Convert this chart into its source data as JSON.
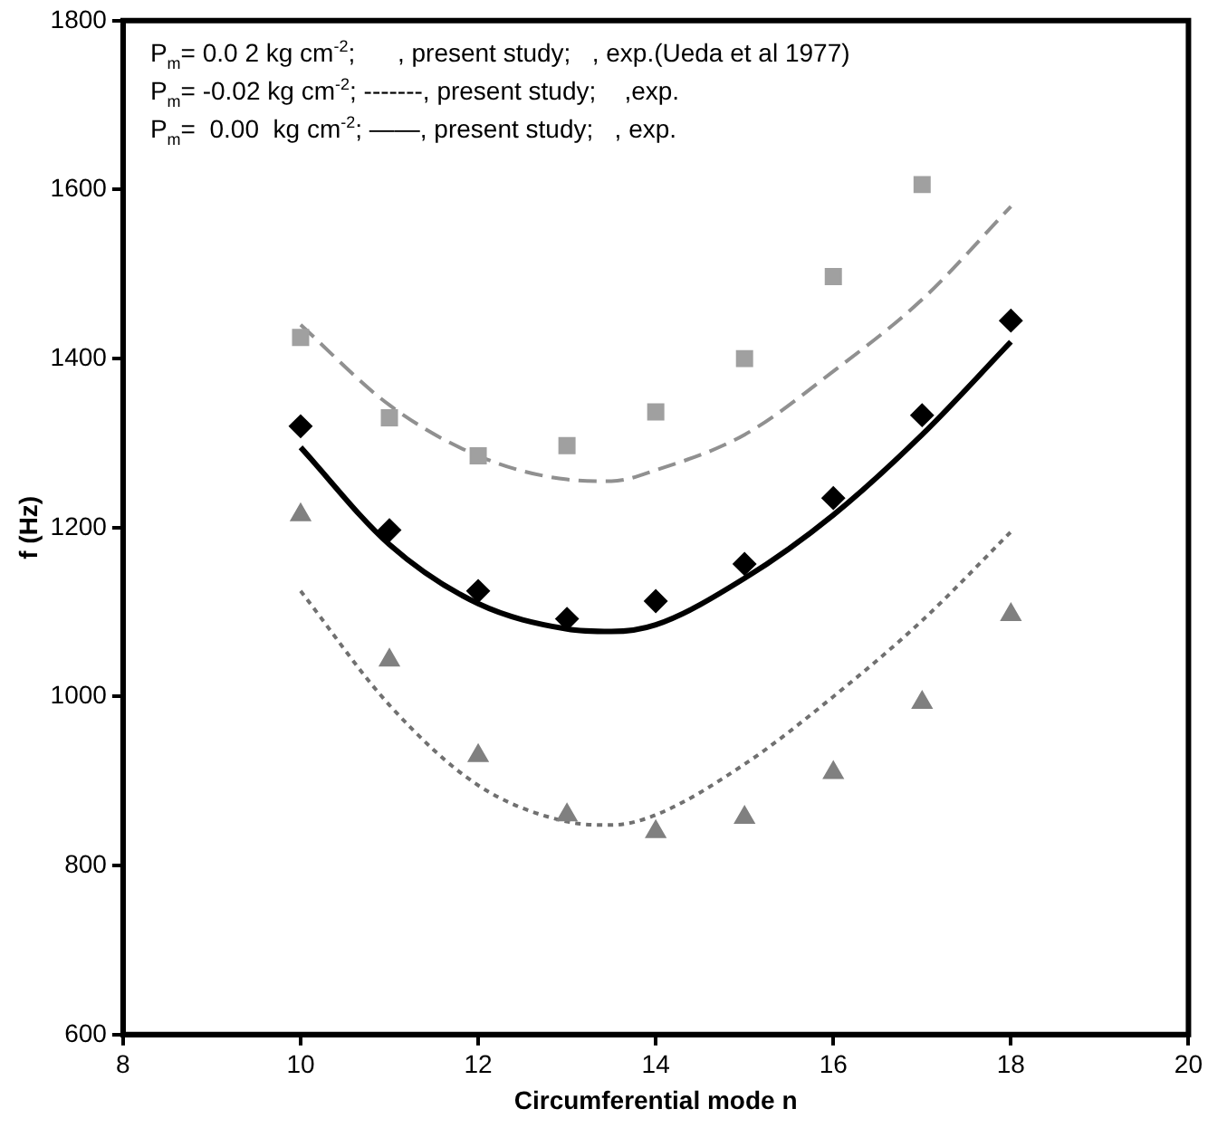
{
  "chart_data": {
    "type": "scatter",
    "xlabel": "Circumferential mode n",
    "ylabel": "f (Hz)",
    "xlim": [
      8,
      20
    ],
    "xticks": [
      8,
      10,
      12,
      14,
      16,
      18,
      20
    ],
    "ylim": [
      600,
      1800
    ],
    "yticks": [
      600,
      800,
      1000,
      1200,
      1400,
      1600,
      1800
    ],
    "grid": false,
    "legend": false,
    "annotations": [
      "P$_{m}$= 0.0 2 kg cm$^{-2}$;      , present study;   , exp.(Ueda et al 1977)",
      "P$_{m}$= -0.02 kg cm$^{-2}$; -------, present study;    ,exp.",
      "P$_{m}$=  0.00  kg cm$^{-2}$; ——, present study;   , exp."
    ],
    "series": [
      {
        "type": "scatter",
        "marker": "square",
        "color": "#a0a0a0",
        "x": [
          10,
          11,
          12,
          13,
          14,
          15,
          16,
          17
        ],
        "values": [
          1425,
          1330,
          1285,
          1297,
          1337,
          1400,
          1497,
          1606
        ]
      },
      {
        "type": "scatter",
        "marker": "diamond",
        "color": "#000000",
        "x": [
          10,
          11,
          12,
          13,
          14,
          15,
          16,
          17,
          18
        ],
        "values": [
          1320,
          1197,
          1125,
          1092,
          1113,
          1157,
          1235,
          1333,
          1445
        ]
      },
      {
        "type": "scatter",
        "marker": "triangle",
        "color": "#808080",
        "x": [
          10,
          11,
          12,
          13,
          14,
          15,
          16,
          17,
          18
        ],
        "values": [
          1215,
          1043,
          930,
          860,
          840,
          857,
          910,
          993,
          1097
        ]
      },
      {
        "type": "line",
        "line_style": "dashed",
        "color": "#909090",
        "x": [
          10,
          11,
          12,
          13,
          13.5,
          14,
          15,
          16,
          17,
          18
        ],
        "values": [
          1440,
          1345,
          1285,
          1257,
          1255,
          1268,
          1310,
          1385,
          1470,
          1580
        ]
      },
      {
        "type": "line",
        "line_style": "solid",
        "color": "#000000",
        "x": [
          10,
          11,
          12,
          13,
          13.5,
          14,
          15,
          16,
          17,
          18
        ],
        "values": [
          1295,
          1180,
          1110,
          1080,
          1077,
          1085,
          1140,
          1215,
          1310,
          1420
        ]
      },
      {
        "type": "line",
        "line_style": "dotted",
        "color": "#707070",
        "x": [
          10,
          11,
          12,
          13,
          13.5,
          14,
          15,
          16,
          17,
          18
        ],
        "values": [
          1125,
          990,
          895,
          852,
          848,
          860,
          920,
          1000,
          1090,
          1195
        ]
      }
    ]
  }
}
